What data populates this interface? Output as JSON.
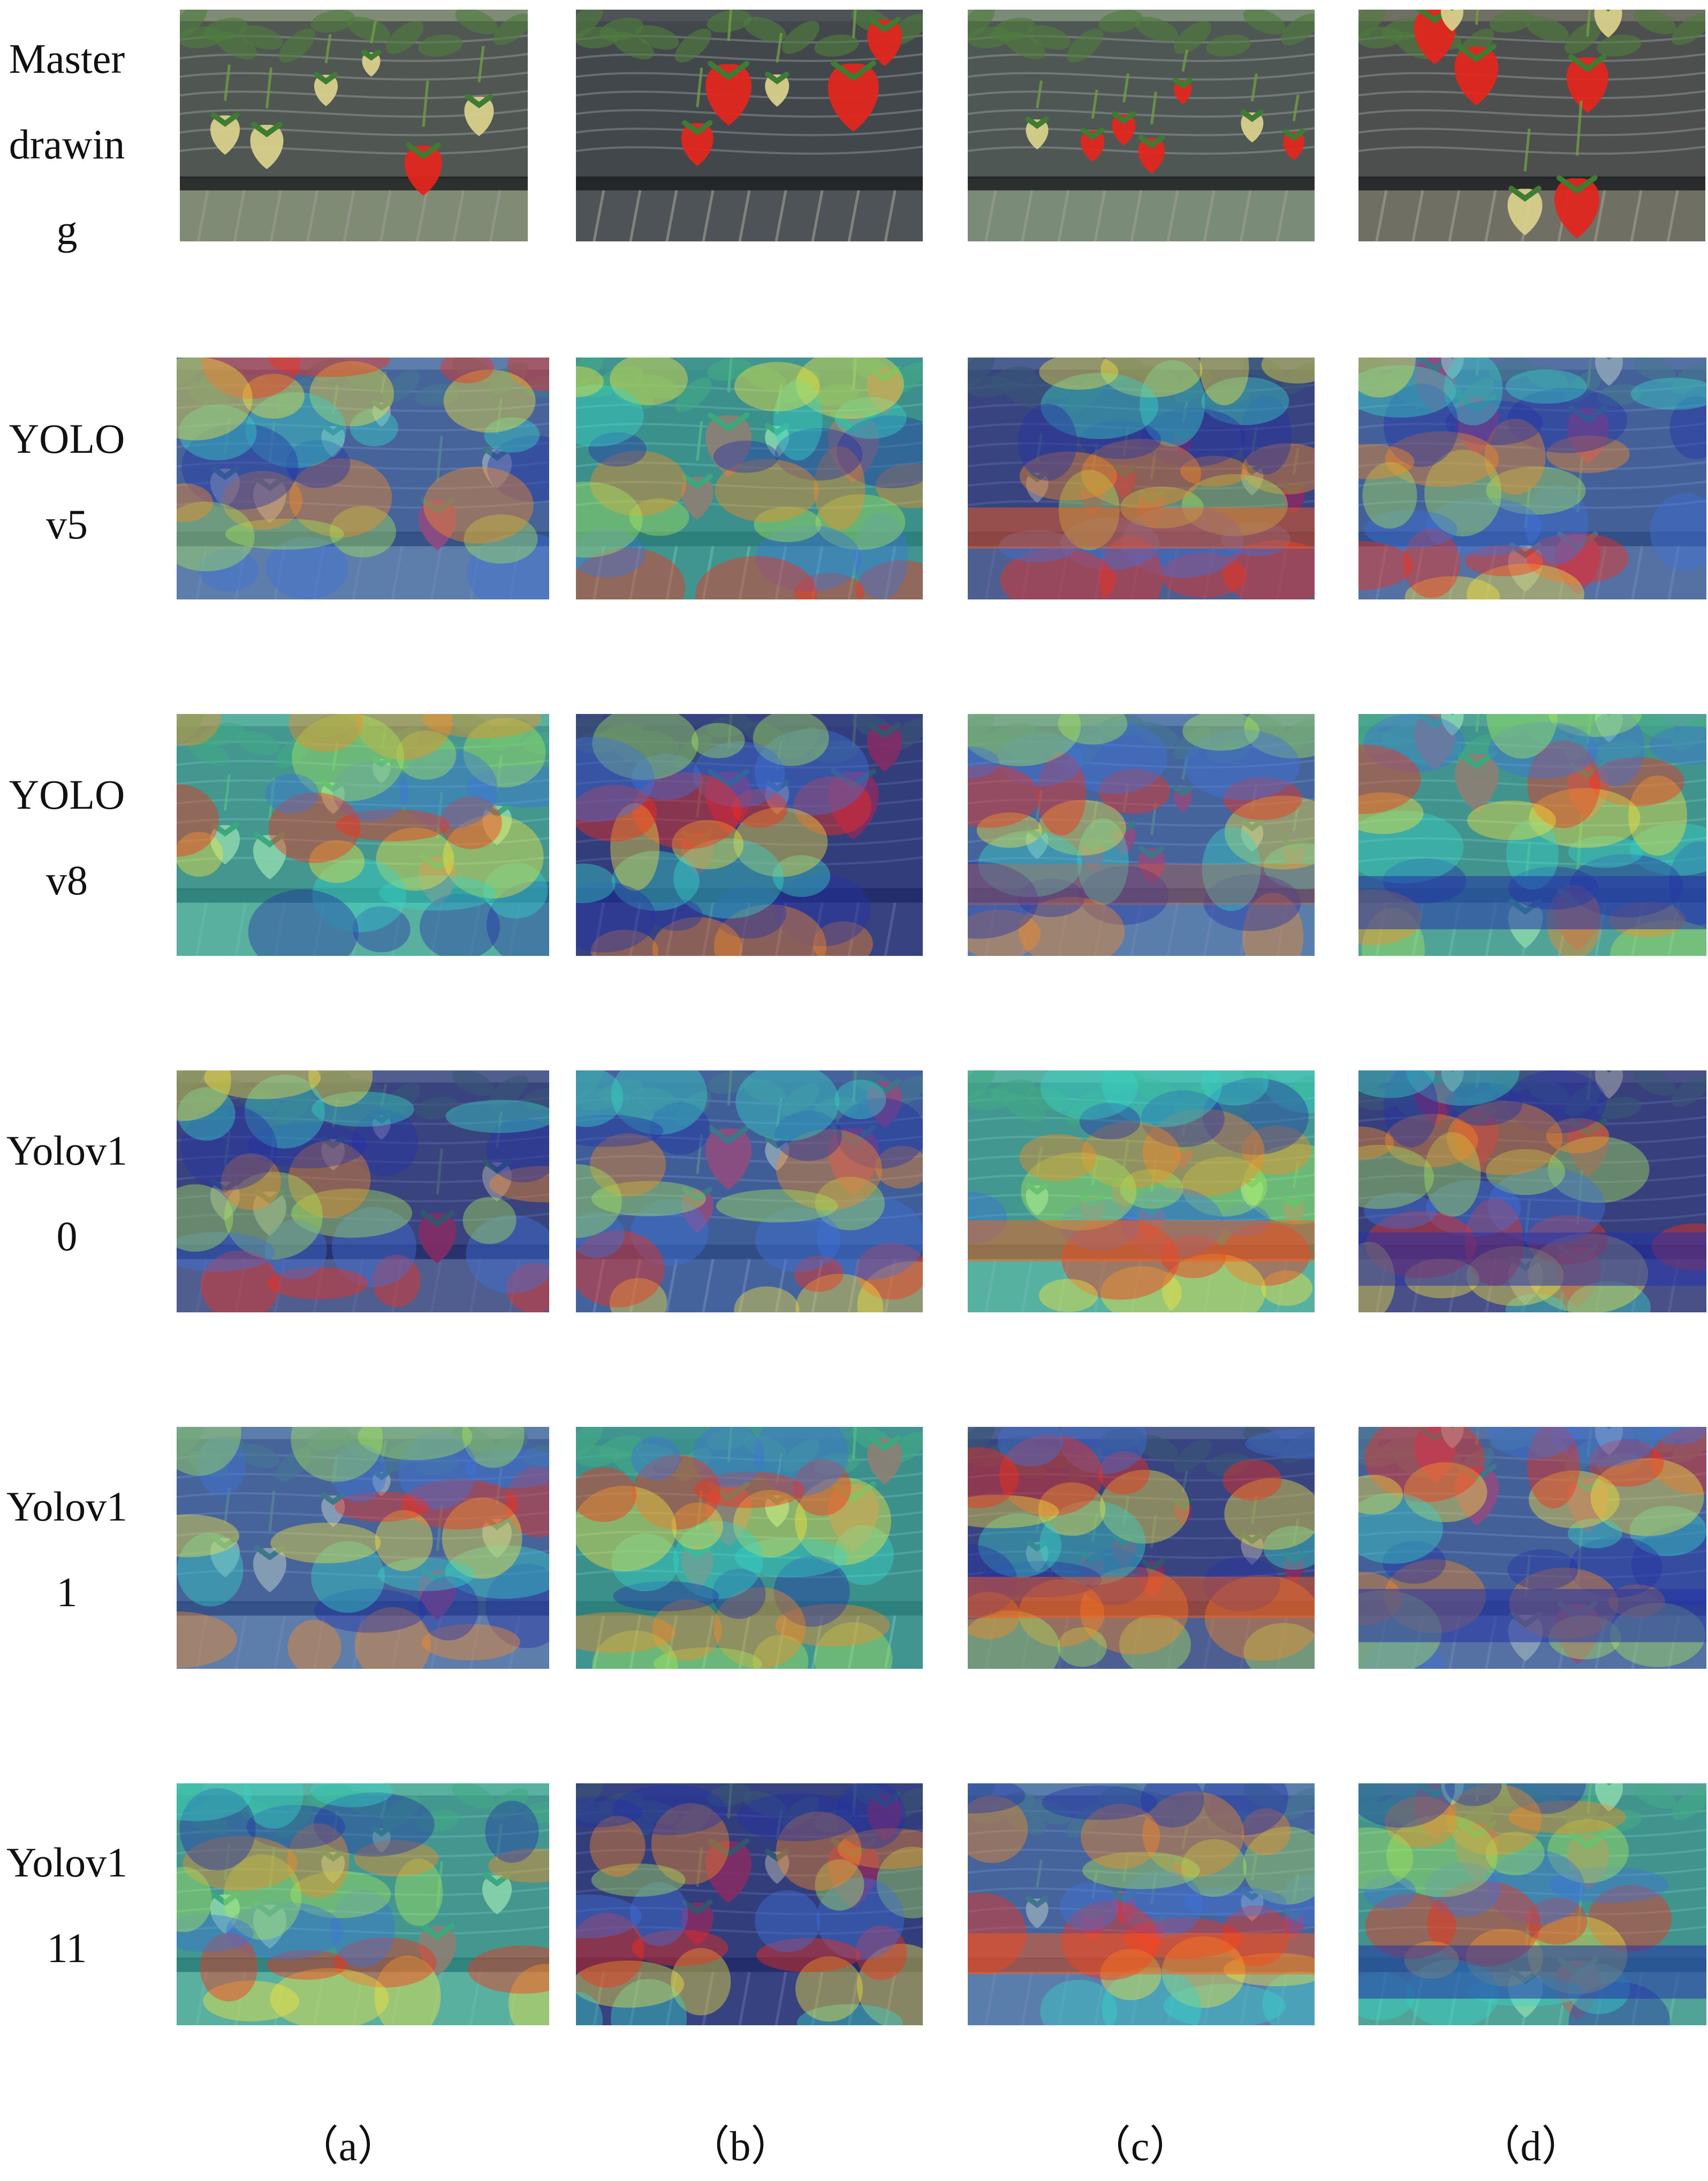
{
  "row_labels": [
    "Master drawing",
    "YOLOv5",
    "YOLOv8",
    "Yolov10",
    "Yolov11",
    "Yolov111"
  ],
  "row_labels_display": [
    "Master\ndrawin\ng",
    "YOLO\nv5",
    "YOLO\nv8",
    "Yolov1\n0",
    "Yolov1\n1",
    "Yolov1\n11"
  ],
  "column_labels": [
    "（a）",
    "（b）",
    "（c）",
    "（d）"
  ],
  "colors": {
    "heatmap_low": "#2433a8",
    "heatmap_mid": "#38d3c7",
    "heatmap_high": "#ff2b12",
    "strawberry_red": "#e2261d",
    "strawberry_unripe": "#d9d08b",
    "leaf_green": "#4f7d3e",
    "greenhouse_film": "#3e4347"
  }
}
